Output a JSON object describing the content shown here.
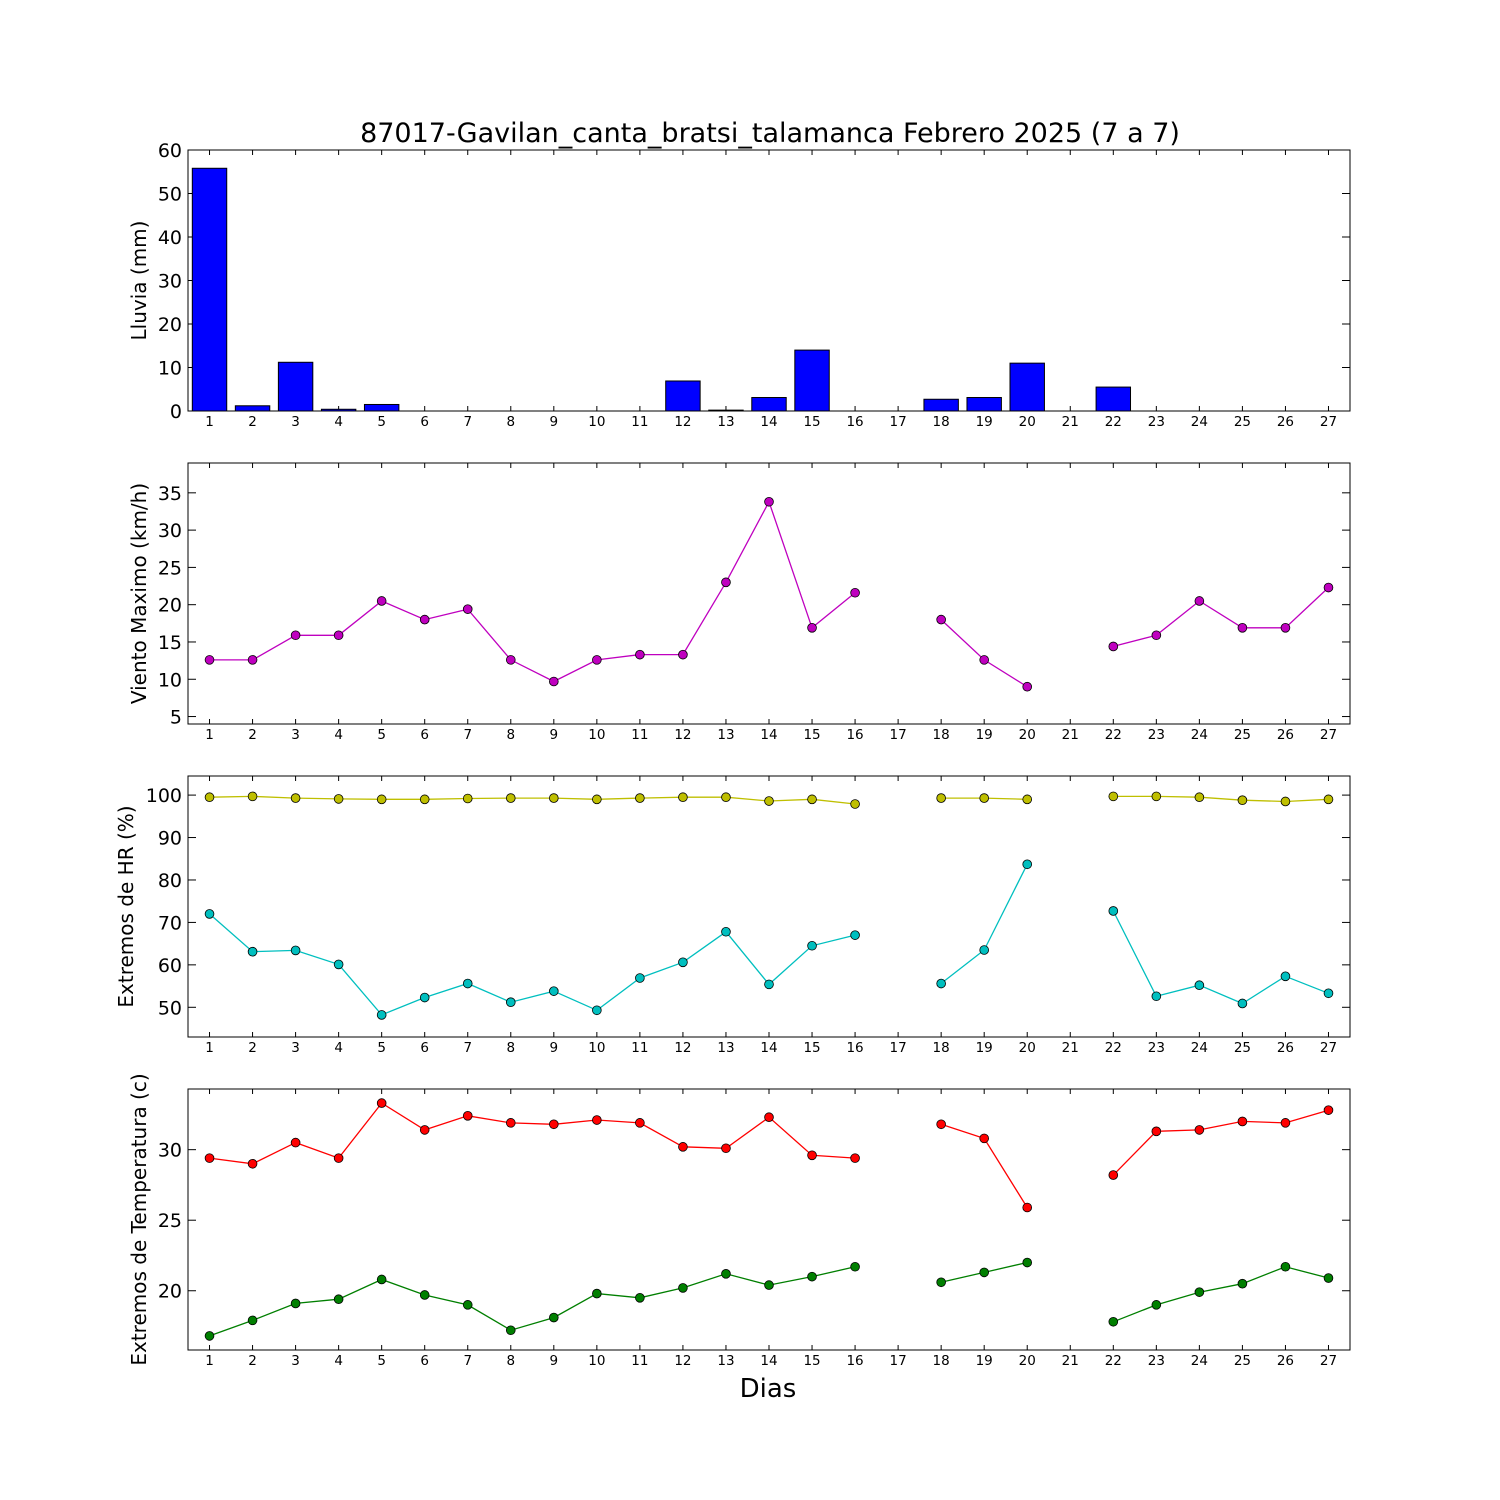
{
  "chart_data": {
    "type": "multi-panel",
    "title": "87017-Gavilan_canta_bratsi_talamanca Febrero 2025  (7 a 7)",
    "xlabel": "Dias",
    "xticks": [
      1,
      2,
      3,
      4,
      5,
      6,
      7,
      8,
      9,
      10,
      11,
      12,
      13,
      14,
      15,
      16,
      17,
      18,
      19,
      20,
      21,
      22,
      23,
      24,
      25,
      26,
      27
    ],
    "panels": [
      {
        "type": "bar",
        "ylabel": "Lluvia (mm)",
        "ylim": [
          0,
          60
        ],
        "yticks": [
          0,
          10,
          20,
          30,
          40,
          50,
          60
        ],
        "color": "#0000ff",
        "series": [
          {
            "values": [
              55.8,
              1.2,
              11.2,
              0.4,
              1.5,
              0,
              0,
              0,
              0,
              0,
              0,
              6.9,
              0.2,
              3.1,
              14.0,
              0,
              null,
              2.7,
              3.1,
              11.0,
              null,
              5.5,
              0,
              0,
              0,
              0,
              0
            ]
          }
        ]
      },
      {
        "type": "line",
        "ylabel": "Viento Maximo (km/h)",
        "ylim": [
          4,
          39
        ],
        "yticks": [
          5,
          10,
          15,
          20,
          25,
          30,
          35
        ],
        "series": [
          {
            "color": "#bf00bf",
            "values": [
              12.6,
              12.6,
              15.9,
              15.9,
              20.5,
              18.0,
              19.4,
              12.6,
              9.7,
              12.6,
              13.3,
              13.3,
              23.0,
              33.8,
              16.9,
              21.6,
              null,
              18.0,
              12.6,
              9.0,
              null,
              14.4,
              15.9,
              20.5,
              16.9,
              16.9,
              22.3
            ]
          }
        ]
      },
      {
        "type": "line",
        "ylabel": "Extremos de HR (%)",
        "ylim": [
          43,
          104.5
        ],
        "yticks": [
          50,
          60,
          70,
          80,
          90,
          100
        ],
        "series": [
          {
            "color": "#bfbf00",
            "values": [
              99.5,
              99.7,
              99.3,
              99.1,
              99.0,
              99.0,
              99.2,
              99.3,
              99.3,
              99.0,
              99.3,
              99.5,
              99.5,
              98.6,
              99.0,
              97.9,
              null,
              99.3,
              99.3,
              99.0,
              null,
              99.7,
              99.7,
              99.5,
              98.8,
              98.5,
              99.0
            ]
          },
          {
            "color": "#00bfbf",
            "values": [
              72.0,
              63.1,
              63.4,
              60.1,
              48.2,
              52.3,
              55.6,
              51.2,
              53.8,
              49.3,
              56.9,
              60.6,
              67.8,
              55.4,
              64.5,
              67.0,
              null,
              55.6,
              63.5,
              83.7,
              null,
              72.7,
              52.6,
              55.2,
              50.9,
              57.3,
              53.3
            ]
          }
        ]
      },
      {
        "type": "line",
        "ylabel": "Extremos de Temperatura (c)",
        "ylim": [
          15.8,
          34.3
        ],
        "yticks": [
          20,
          25,
          30
        ],
        "series": [
          {
            "color": "#ff0000",
            "values": [
              29.4,
              29.0,
              30.5,
              29.4,
              33.3,
              31.4,
              32.4,
              31.9,
              31.8,
              32.1,
              31.9,
              30.2,
              30.1,
              32.3,
              29.6,
              29.4,
              null,
              31.8,
              30.8,
              25.9,
              null,
              28.2,
              31.3,
              31.4,
              32.0,
              31.9,
              32.8
            ]
          },
          {
            "color": "#007f00",
            "values": [
              16.8,
              17.9,
              19.1,
              19.4,
              20.8,
              19.7,
              19.0,
              17.2,
              18.1,
              19.8,
              19.5,
              20.2,
              21.2,
              20.4,
              21.0,
              21.7,
              null,
              20.6,
              21.3,
              22.0,
              null,
              17.8,
              19.0,
              19.9,
              20.5,
              21.7,
              20.9
            ]
          }
        ]
      }
    ]
  }
}
